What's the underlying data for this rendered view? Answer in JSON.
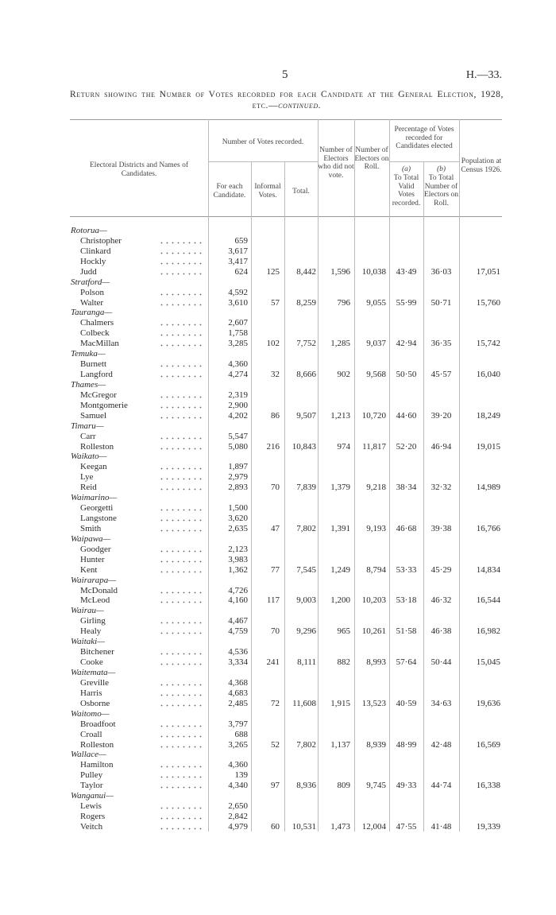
{
  "header": {
    "page": "5",
    "ref": "H.—33."
  },
  "title": {
    "text": "Return showing the Number of Votes recorded for each Candidate at the General Election, 1928, etc.—",
    "continued": "continued."
  },
  "table": {
    "headers": {
      "districts": "Electoral Districts and Names of Candidates.",
      "votes": "Number of Votes recorded.",
      "for_each": "For each Candidate.",
      "informal": "Informal Votes.",
      "total": "Total.",
      "not_voted": "Number of Electors who did not vote.",
      "roll": "Number of Electors on Roll.",
      "percentage": "Percentage of Votes recorded for Candidates elected",
      "a": "(a)",
      "a_text": "To Total Valid Votes recorded.",
      "b": "(b)",
      "b_text": "To Total Number of Electors on Roll.",
      "population": "Population at Census 1926."
    },
    "districts": [
      {
        "name": "Rotorua—",
        "candidates": [
          {
            "name": "Christopher",
            "votes": "659"
          },
          {
            "name": "Clinkard",
            "votes": "3,617"
          },
          {
            "name": "Hockly",
            "votes": "3,417"
          },
          {
            "name": "Judd",
            "votes": "624"
          }
        ],
        "informal": "125",
        "total": "8,442",
        "not_voted": "1,596",
        "roll": "10,038",
        "pct_valid": "43·49",
        "pct_roll": "36·03",
        "population": "17,051"
      },
      {
        "name": "Stratford—",
        "candidates": [
          {
            "name": "Polson",
            "votes": "4,592"
          },
          {
            "name": "Walter",
            "votes": "3,610"
          }
        ],
        "informal": "57",
        "total": "8,259",
        "not_voted": "796",
        "roll": "9,055",
        "pct_valid": "55·99",
        "pct_roll": "50·71",
        "population": "15,760"
      },
      {
        "name": "Tauranga—",
        "candidates": [
          {
            "name": "Chalmers",
            "votes": "2,607"
          },
          {
            "name": "Colbeck",
            "votes": "1,758"
          },
          {
            "name": "MacMillan",
            "votes": "3,285"
          }
        ],
        "informal": "102",
        "total": "7,752",
        "not_voted": "1,285",
        "roll": "9,037",
        "pct_valid": "42·94",
        "pct_roll": "36·35",
        "population": "15,742"
      },
      {
        "name": "Temuka—",
        "candidates": [
          {
            "name": "Burnett",
            "votes": "4,360"
          },
          {
            "name": "Langford",
            "votes": "4,274"
          }
        ],
        "informal": "32",
        "total": "8,666",
        "not_voted": "902",
        "roll": "9,568",
        "pct_valid": "50·50",
        "pct_roll": "45·57",
        "population": "16,040"
      },
      {
        "name": "Thames—",
        "candidates": [
          {
            "name": "McGregor",
            "votes": "2,319"
          },
          {
            "name": "Montgomerie",
            "votes": "2,900"
          },
          {
            "name": "Samuel",
            "votes": "4,202"
          }
        ],
        "informal": "86",
        "total": "9,507",
        "not_voted": "1,213",
        "roll": "10,720",
        "pct_valid": "44·60",
        "pct_roll": "39·20",
        "population": "18,249"
      },
      {
        "name": "Timaru—",
        "candidates": [
          {
            "name": "Carr",
            "votes": "5,547"
          },
          {
            "name": "Rolleston",
            "votes": "5,080"
          }
        ],
        "informal": "216",
        "total": "10,843",
        "not_voted": "974",
        "roll": "11,817",
        "pct_valid": "52·20",
        "pct_roll": "46·94",
        "population": "19,015"
      },
      {
        "name": "Waikato—",
        "candidates": [
          {
            "name": "Keegan",
            "votes": "1,897"
          },
          {
            "name": "Lye",
            "votes": "2,979"
          },
          {
            "name": "Reid",
            "votes": "2,893"
          }
        ],
        "informal": "70",
        "total": "7,839",
        "not_voted": "1,379",
        "roll": "9,218",
        "pct_valid": "38·34",
        "pct_roll": "32·32",
        "population": "14,989"
      },
      {
        "name": "Waimarino—",
        "candidates": [
          {
            "name": "Georgetti",
            "votes": "1,500"
          },
          {
            "name": "Langstone",
            "votes": "3,620"
          },
          {
            "name": "Smith",
            "votes": "2,635"
          }
        ],
        "informal": "47",
        "total": "7,802",
        "not_voted": "1,391",
        "roll": "9,193",
        "pct_valid": "46·68",
        "pct_roll": "39·38",
        "population": "16,766"
      },
      {
        "name": "Waipawa—",
        "candidates": [
          {
            "name": "Goodger",
            "votes": "2,123"
          },
          {
            "name": "Hunter",
            "votes": "3,983"
          },
          {
            "name": "Kent",
            "votes": "1,362"
          }
        ],
        "informal": "77",
        "total": "7,545",
        "not_voted": "1,249",
        "roll": "8,794",
        "pct_valid": "53·33",
        "pct_roll": "45·29",
        "population": "14,834"
      },
      {
        "name": "Wairarapa—",
        "candidates": [
          {
            "name": "McDonald",
            "votes": "4,726"
          },
          {
            "name": "McLeod",
            "votes": "4,160"
          }
        ],
        "informal": "117",
        "total": "9,003",
        "not_voted": "1,200",
        "roll": "10,203",
        "pct_valid": "53·18",
        "pct_roll": "46·32",
        "population": "16,544"
      },
      {
        "name": "Wairau—",
        "candidates": [
          {
            "name": "Girling",
            "votes": "4,467"
          },
          {
            "name": "Healy",
            "votes": "4,759"
          }
        ],
        "informal": "70",
        "total": "9,296",
        "not_voted": "965",
        "roll": "10,261",
        "pct_valid": "51·58",
        "pct_roll": "46·38",
        "population": "16,982"
      },
      {
        "name": "Waitaki—",
        "candidates": [
          {
            "name": "Bitchener",
            "votes": "4,536"
          },
          {
            "name": "Cooke",
            "votes": "3,334"
          }
        ],
        "informal": "241",
        "total": "8,111",
        "not_voted": "882",
        "roll": "8,993",
        "pct_valid": "57·64",
        "pct_roll": "50·44",
        "population": "15,045"
      },
      {
        "name": "Waitemata—",
        "candidates": [
          {
            "name": "Greville",
            "votes": "4,368"
          },
          {
            "name": "Harris",
            "votes": "4,683"
          },
          {
            "name": "Osborne",
            "votes": "2,485"
          }
        ],
        "informal": "72",
        "total": "11,608",
        "not_voted": "1,915",
        "roll": "13,523",
        "pct_valid": "40·59",
        "pct_roll": "34·63",
        "population": "19,636"
      },
      {
        "name": "Waitomo—",
        "candidates": [
          {
            "name": "Broadfoot",
            "votes": "3,797"
          },
          {
            "name": "Croall",
            "votes": "688"
          },
          {
            "name": "Rolleston",
            "votes": "3,265"
          }
        ],
        "informal": "52",
        "total": "7,802",
        "not_voted": "1,137",
        "roll": "8,939",
        "pct_valid": "48·99",
        "pct_roll": "42·48",
        "population": "16,569"
      },
      {
        "name": "Wallace—",
        "candidates": [
          {
            "name": "Hamilton",
            "votes": "4,360"
          },
          {
            "name": "Pulley",
            "votes": "139"
          },
          {
            "name": "Taylor",
            "votes": "4,340"
          }
        ],
        "informal": "97",
        "total": "8,936",
        "not_voted": "809",
        "roll": "9,745",
        "pct_valid": "49·33",
        "pct_roll": "44·74",
        "population": "16,338"
      },
      {
        "name": "Wanganui—",
        "candidates": [
          {
            "name": "Lewis",
            "votes": "2,650"
          },
          {
            "name": "Rogers",
            "votes": "2,842"
          },
          {
            "name": "Veitch",
            "votes": "4,979"
          }
        ],
        "informal": "60",
        "total": "10,531",
        "not_voted": "1,473",
        "roll": "12,004",
        "pct_valid": "47·55",
        "pct_roll": "41·48",
        "population": "19,339"
      }
    ]
  }
}
